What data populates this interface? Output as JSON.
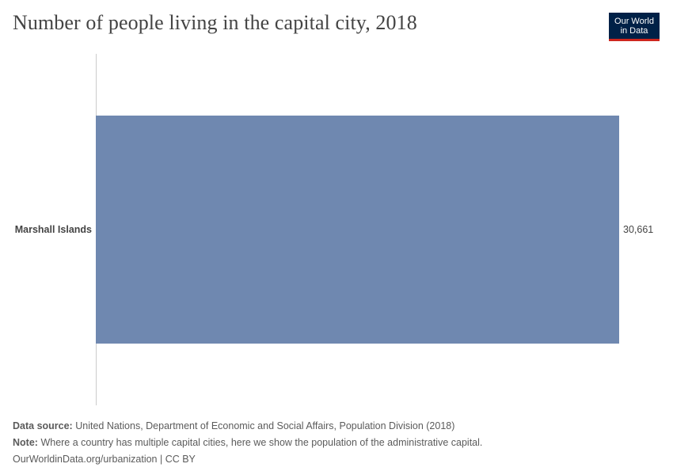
{
  "header": {
    "title": "Number of people living in the capital city, 2018",
    "logo_line1": "Our World",
    "logo_line2": "in Data"
  },
  "colors": {
    "bar": "#6f88b0",
    "axis": "#cccccc",
    "label": "#444444",
    "logo_bg": "#002147",
    "logo_accent": "#ce261e"
  },
  "chart_data": {
    "type": "bar",
    "orientation": "horizontal",
    "title": "Number of people living in the capital city, 2018",
    "categories": [
      "Marshall Islands"
    ],
    "values": [
      30661
    ],
    "value_labels": [
      "30,661"
    ],
    "xlim": [
      0,
      30661
    ],
    "grid": false,
    "legend": "none"
  },
  "footer": {
    "source_label": "Data source:",
    "source_text": "United Nations, Department of Economic and Social Affairs, Population Division (2018)",
    "note_label": "Note:",
    "note_text": "Where a country has multiple capital cities, here we show the population of the administrative capital.",
    "credit": "OurWorldinData.org/urbanization | CC BY"
  }
}
